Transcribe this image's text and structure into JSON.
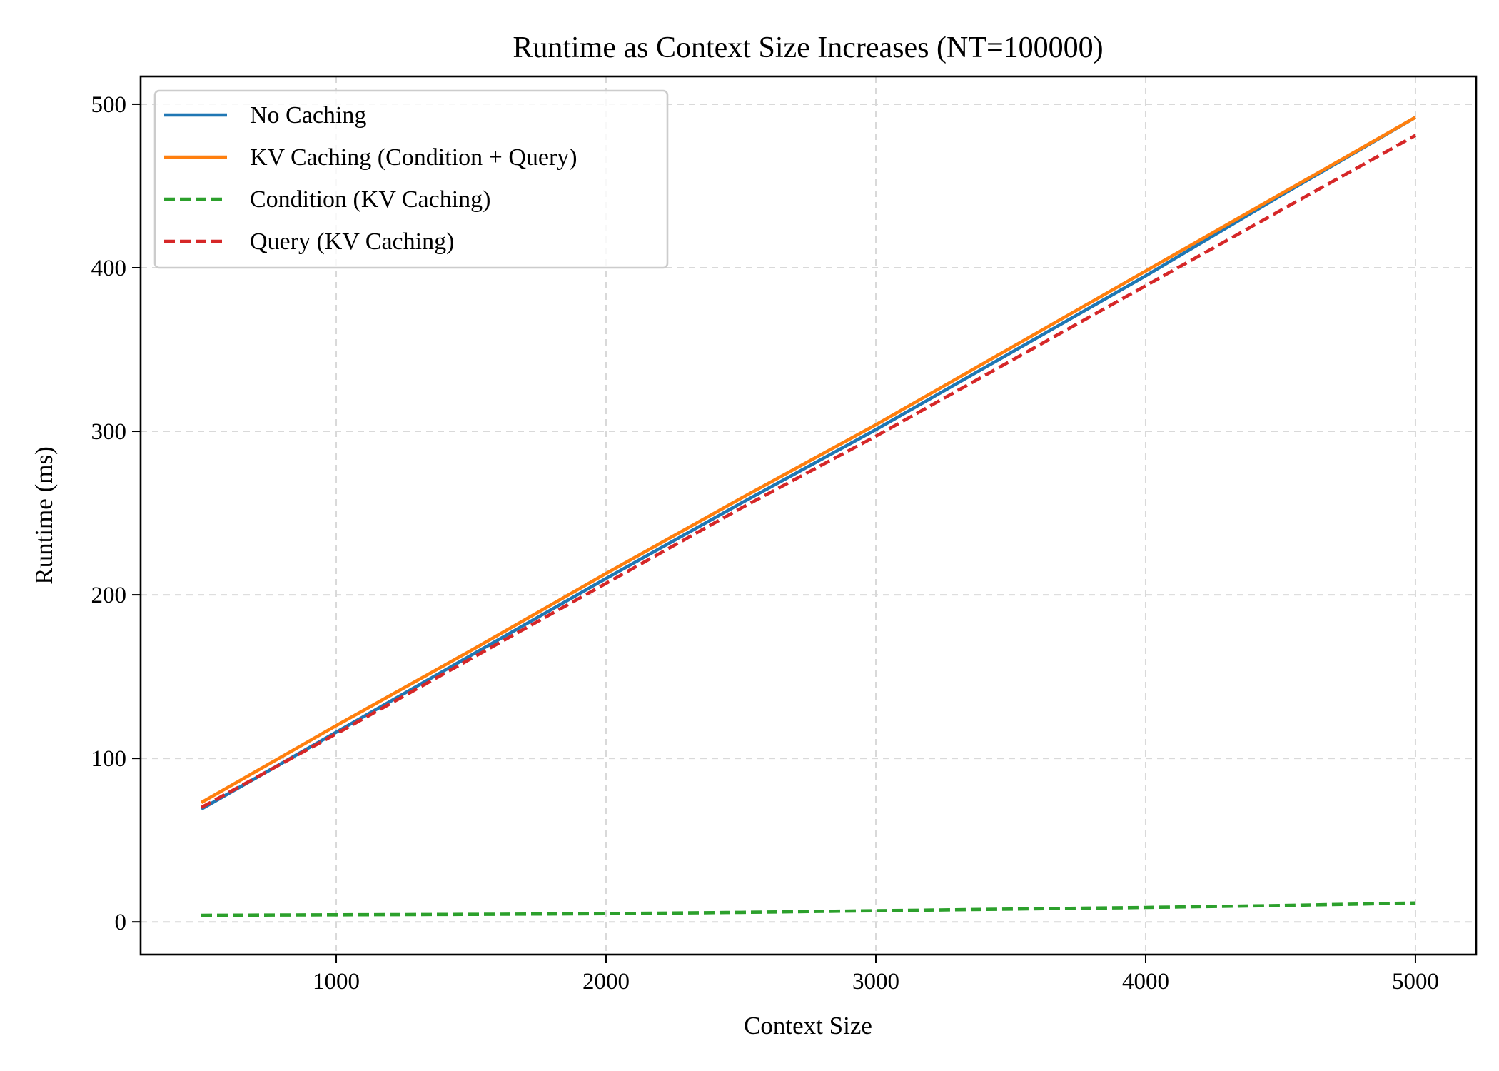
{
  "chart_data": {
    "type": "line",
    "title": "Runtime as Context Size Increases (NT=100000)",
    "xlabel": "Context Size",
    "ylabel": "Runtime (ms)",
    "xlim": [
      275,
      5225
    ],
    "ylim": [
      -20,
      517
    ],
    "xticks": [
      1000,
      2000,
      3000,
      4000,
      5000
    ],
    "yticks": [
      0,
      100,
      200,
      300,
      400,
      500
    ],
    "grid": true,
    "legend_position": "top-left",
    "x": [
      500,
      1000,
      1500,
      2000,
      2500,
      3000,
      3500,
      4000,
      4500,
      5000
    ],
    "series": [
      {
        "name": "No Caching",
        "color": "#1f77b4",
        "style": "solid",
        "values": [
          69,
          116,
          163,
          210,
          256,
          301,
          348,
          395,
          444,
          492
        ]
      },
      {
        "name": "KV Caching (Condition + Query)",
        "color": "#ff7f0e",
        "style": "solid",
        "values": [
          73,
          120,
          166,
          213,
          259,
          304,
          351,
          398,
          445,
          492
        ]
      },
      {
        "name": "Condition (KV Caching)",
        "color": "#2ca02c",
        "style": "dashed",
        "values": [
          4,
          4.3,
          4.6,
          5,
          5.8,
          6.8,
          7.8,
          8.8,
          10,
          11.5
        ]
      },
      {
        "name": "Query (KV Caching)",
        "color": "#d62728",
        "style": "dashed",
        "values": [
          70,
          115,
          161,
          207,
          253,
          297,
          343,
          389,
          435,
          481
        ]
      }
    ]
  }
}
